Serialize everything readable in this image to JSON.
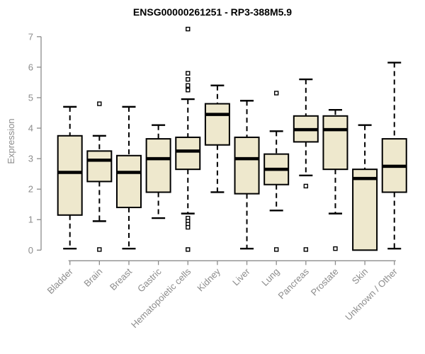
{
  "chart_data": {
    "type": "boxplot",
    "title": "ENSG00000261251 - RP3-388M5.9",
    "xlabel": "",
    "ylabel": "Expression",
    "ylim": [
      0,
      7
    ],
    "yticks": [
      0,
      1,
      2,
      3,
      4,
      5,
      6,
      7
    ],
    "grid": "off",
    "legend": "none",
    "categories": [
      "Bladder",
      "Brain",
      "Breast",
      "Gastric",
      "Hematopoietic cells",
      "Kidney",
      "Liver",
      "Lung",
      "Pancreas",
      "Prostate",
      "Skin",
      "Unknown / Other"
    ],
    "series": [
      {
        "category": "Bladder",
        "whisker_low": 0.05,
        "q1": 1.15,
        "median": 2.55,
        "q3": 3.75,
        "whisker_high": 4.7,
        "outliers": []
      },
      {
        "category": "Brain",
        "whisker_low": 0.95,
        "q1": 2.25,
        "median": 2.95,
        "q3": 3.25,
        "whisker_high": 3.75,
        "outliers": [
          4.8,
          0.02
        ]
      },
      {
        "category": "Breast",
        "whisker_low": 0.05,
        "q1": 1.4,
        "median": 2.55,
        "q3": 3.1,
        "whisker_high": 4.7,
        "outliers": []
      },
      {
        "category": "Gastric",
        "whisker_low": 1.05,
        "q1": 1.9,
        "median": 3.0,
        "q3": 3.65,
        "whisker_high": 4.1,
        "outliers": []
      },
      {
        "category": "Hematopoietic cells",
        "whisker_low": 1.2,
        "q1": 2.65,
        "median": 3.25,
        "q3": 3.7,
        "whisker_high": 4.95,
        "outliers": [
          7.25,
          5.8,
          5.6,
          5.4,
          5.25,
          1.05,
          0.95,
          0.85,
          0.75,
          0.02
        ]
      },
      {
        "category": "Kidney",
        "whisker_low": 1.9,
        "q1": 3.45,
        "median": 4.45,
        "q3": 4.8,
        "whisker_high": 5.4,
        "outliers": []
      },
      {
        "category": "Liver",
        "whisker_low": 0.05,
        "q1": 1.85,
        "median": 3.0,
        "q3": 3.7,
        "whisker_high": 4.9,
        "outliers": []
      },
      {
        "category": "Lung",
        "whisker_low": 1.3,
        "q1": 2.15,
        "median": 2.65,
        "q3": 3.15,
        "whisker_high": 3.9,
        "outliers": [
          5.15,
          0.02
        ]
      },
      {
        "category": "Pancreas",
        "whisker_low": 2.45,
        "q1": 3.55,
        "median": 3.95,
        "q3": 4.4,
        "whisker_high": 5.6,
        "outliers": [
          2.1,
          0.02
        ]
      },
      {
        "category": "Prostate",
        "whisker_low": 1.2,
        "q1": 2.65,
        "median": 3.95,
        "q3": 4.4,
        "whisker_high": 4.6,
        "outliers": [
          0.05
        ]
      },
      {
        "category": "Skin",
        "whisker_low": 0.0,
        "q1": 0.0,
        "median": 2.35,
        "q3": 2.65,
        "whisker_high": 4.1,
        "outliers": []
      },
      {
        "category": "Unknown / Other",
        "whisker_low": 0.05,
        "q1": 1.9,
        "median": 2.75,
        "q3": 3.65,
        "whisker_high": 6.15,
        "outliers": []
      }
    ]
  },
  "colors": {
    "box_fill": "#EEE8CD",
    "box_stroke": "#000000",
    "median": "#000000",
    "axis": "#8c8c8c",
    "tick_label": "#8c8c8c",
    "title": "#000000",
    "background": "#ffffff"
  }
}
